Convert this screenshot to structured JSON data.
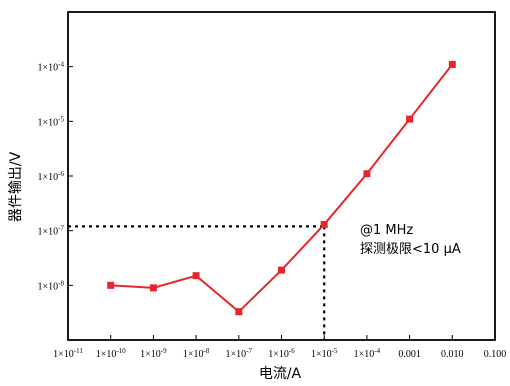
{
  "chart_data": {
    "type": "line",
    "xscale": "log",
    "yscale": "log",
    "xlabel": "电流/A",
    "ylabel": "器件输出/V",
    "xlim": [
      1e-11,
      0.1
    ],
    "ylim": [
      1e-09,
      0.001
    ],
    "grid": false,
    "line_color": "#e8262a",
    "x_tick_labels": [
      {
        "base": "1×10",
        "exp": "-11"
      },
      {
        "base": "1×10",
        "exp": "-10"
      },
      {
        "base": "1×10",
        "exp": "-9"
      },
      {
        "base": "1×10",
        "exp": "-8"
      },
      {
        "base": "1×10",
        "exp": "-7"
      },
      {
        "base": "1×10",
        "exp": "-6"
      },
      {
        "base": "1×10",
        "exp": "-5"
      },
      {
        "base": "1×10",
        "exp": "-4"
      },
      {
        "base": "0.001",
        "exp": ""
      },
      {
        "base": "0.010",
        "exp": ""
      },
      {
        "base": "0.100",
        "exp": ""
      }
    ],
    "y_tick_labels": [
      {
        "base": "1×10",
        "exp": "-8",
        "value": 1e-08
      },
      {
        "base": "1×10",
        "exp": "-7",
        "value": 1e-07
      },
      {
        "base": "1×10",
        "exp": "-6",
        "value": 1e-06
      },
      {
        "base": "1×10",
        "exp": "-5",
        "value": 1e-05
      },
      {
        "base": "1×10",
        "exp": "-4",
        "value": 0.0001
      }
    ],
    "series": [
      {
        "x": [
          1e-10,
          1e-09,
          1e-08,
          1e-07,
          1e-06,
          1e-05,
          0.0001,
          0.001,
          0.01
        ],
        "y": [
          1e-08,
          9e-09,
          1.5e-08,
          3.3e-09,
          1.9e-08,
          1.3e-07,
          1.1e-06,
          1.1e-05,
          0.00011
        ]
      }
    ],
    "reference_point": {
      "x": 1e-05,
      "y": 1.2e-07
    },
    "annotation": [
      "@1 MHz",
      "探测极限<10 μA"
    ]
  }
}
